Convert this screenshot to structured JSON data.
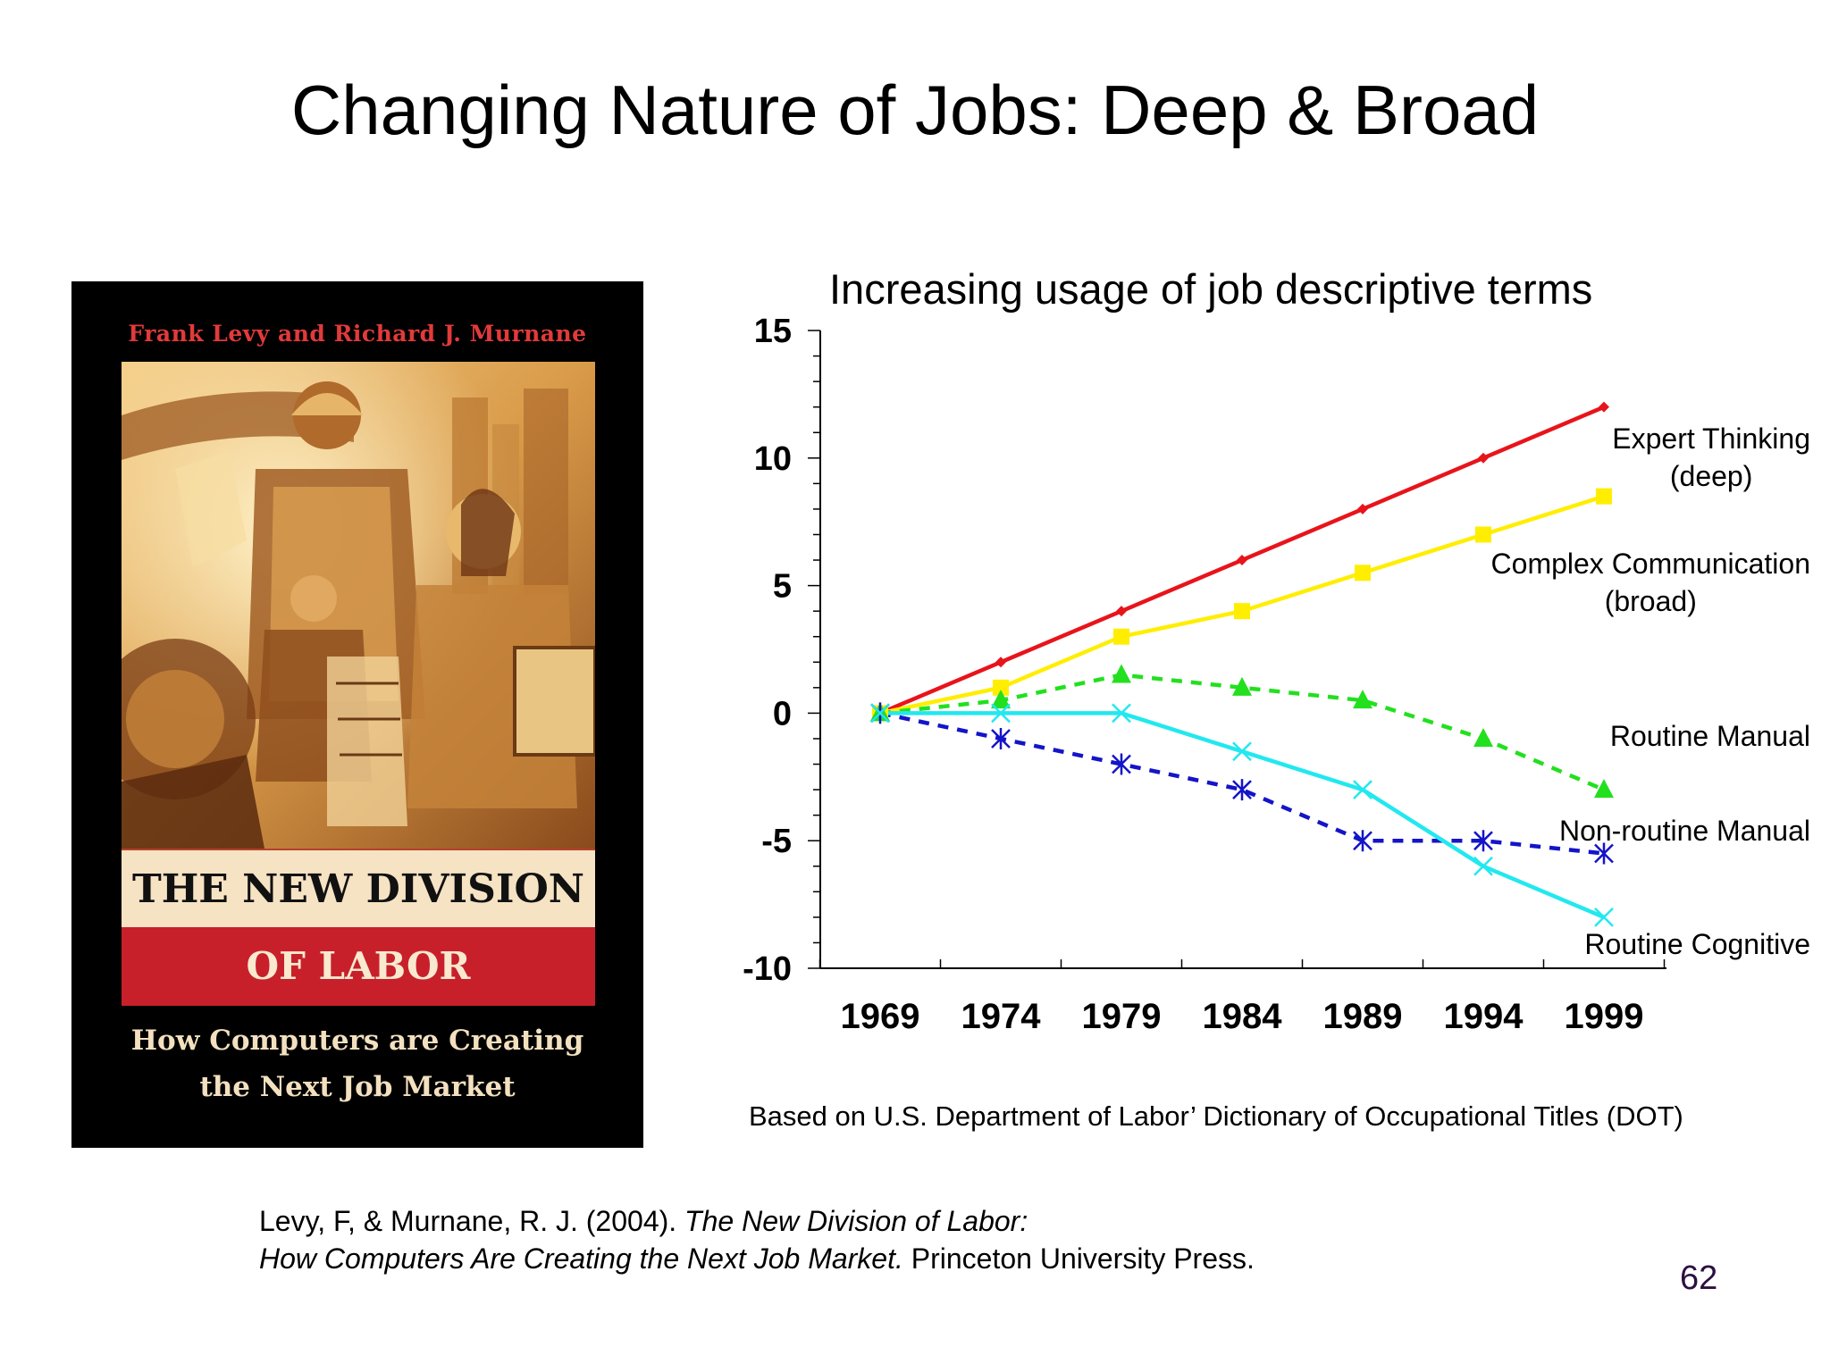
{
  "slide": {
    "title": "Changing Nature of Jobs: Deep & Broad",
    "page_number": "62",
    "source_note": "Based on U.S. Department of Labor’ Dictionary of Occupational Titles (DOT)",
    "citation": {
      "authors": "Levy, F, & Murnane, R. J. (2004). ",
      "title_line1": "The New Division of Labor:",
      "title_line2": "How Computers Are Creating the Next Job Market.",
      "publisher": " Princeton University Press."
    }
  },
  "book": {
    "authors": "Frank Levy and Richard J. Murnane",
    "title_line1": "THE NEW DIVISION",
    "title_line2": "OF LABOR",
    "subtitle_line1": "How Computers are Creating",
    "subtitle_line2": "the Next Job Market",
    "colors": {
      "background": "#000000",
      "title_band": "#f6e3c4",
      "title_band_red": "#c8202b",
      "authors": "#e23a3a"
    }
  },
  "chart_data": {
    "type": "line",
    "title": "Increasing usage of job descriptive terms",
    "xlabel": "",
    "ylabel": "",
    "categories": [
      "1969",
      "1974",
      "1979",
      "1984",
      "1989",
      "1994",
      "1999"
    ],
    "ylim": [
      -10,
      15
    ],
    "yticks": [
      "15",
      "10",
      "5",
      "0",
      "-5",
      "-10"
    ],
    "grid": false,
    "series": [
      {
        "label_line1": "Expert Thinking",
        "label_line2": "(deep)",
        "values": [
          0,
          2,
          4,
          6,
          8,
          10,
          12
        ],
        "color": "#e8141b",
        "dashed": false,
        "marker": "diamond"
      },
      {
        "label_line1": "Complex Communication",
        "label_line2": "(broad)",
        "values": [
          0,
          1,
          3,
          4,
          5.5,
          7,
          8.5
        ],
        "color": "#ffee00",
        "dashed": false,
        "marker": "square"
      },
      {
        "label_line1": "Routine Manual",
        "label_line2": "",
        "values": [
          0,
          0.5,
          1.5,
          1,
          0.5,
          -1,
          -3
        ],
        "color": "#22e01e",
        "dashed": true,
        "marker": "triangle"
      },
      {
        "label_line1": "Non-routine Manual",
        "label_line2": "",
        "values": [
          0,
          -1,
          -2,
          -3,
          -5,
          -5,
          -5.5
        ],
        "color": "#1414c8",
        "dashed": true,
        "marker": "star"
      },
      {
        "label_line1": "Routine Cognitive",
        "label_line2": "",
        "values": [
          0,
          0,
          0,
          -1.5,
          -3,
          -6,
          -8
        ],
        "color": "#22e8ef",
        "dashed": false,
        "marker": "x"
      }
    ]
  }
}
